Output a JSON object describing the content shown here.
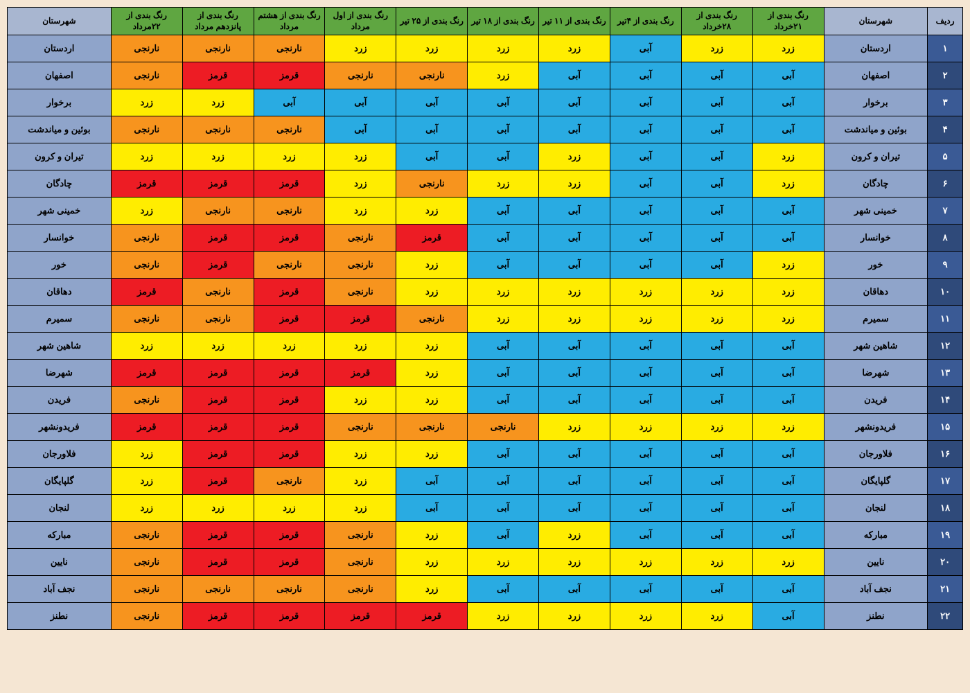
{
  "colors": {
    "header_city_bg": "#a8b6d0",
    "header_date_bg": "#5fa641",
    "header_fg": "#000000",
    "row_city_bg": "#8fa4ca",
    "row_num_odd_bg": "#3a5a95",
    "row_num_even_bg": "#2f4a7a",
    "row_num_fg": "#ffffff",
    "blue": "#29abe2",
    "yellow": "#ffed00",
    "orange": "#f7941e",
    "red": "#ed1c24",
    "cell_fg": "#000000"
  },
  "status_labels": {
    "blue": "آبی",
    "yellow": "زرد",
    "orange": "نارنجی",
    "red": "قرمز"
  },
  "headers": {
    "radif": "ردیف",
    "city": "شهرستان",
    "dates": [
      "رنگ بندی از ۲۱خرداد",
      "رنگ بندی از ۲۸خرداد",
      "رنگ بندی از ۴تیر",
      "رنگ بندی از ۱۱ تیر",
      "رنگ بندی از ۱۸ تیر",
      "رنگ بندی از ۲۵ تیر",
      "رنگ بندی از اول مرداد",
      "رنگ بندی از هشتم مرداد",
      "رنگ بندی از پانزدهم مرداد",
      "رنگ بندی از ۲۲مرداد"
    ]
  },
  "persian_digits": [
    "۰",
    "۱",
    "۲",
    "۳",
    "۴",
    "۵",
    "۶",
    "۷",
    "۸",
    "۹"
  ],
  "rows": [
    {
      "city": "اردستان",
      "v": [
        "yellow",
        "yellow",
        "blue",
        "yellow",
        "yellow",
        "yellow",
        "yellow",
        "orange",
        "orange",
        "orange"
      ]
    },
    {
      "city": "اصفهان",
      "v": [
        "blue",
        "blue",
        "blue",
        "blue",
        "yellow",
        "orange",
        "orange",
        "red",
        "red",
        "orange"
      ]
    },
    {
      "city": "برخوار",
      "v": [
        "blue",
        "blue",
        "blue",
        "blue",
        "blue",
        "blue",
        "blue",
        "blue",
        "yellow",
        "yellow"
      ]
    },
    {
      "city": "بوئین و میاندشت",
      "v": [
        "blue",
        "blue",
        "blue",
        "blue",
        "blue",
        "blue",
        "blue",
        "orange",
        "orange",
        "orange"
      ]
    },
    {
      "city": "تیران و کرون",
      "v": [
        "yellow",
        "blue",
        "blue",
        "yellow",
        "blue",
        "blue",
        "yellow",
        "yellow",
        "yellow",
        "yellow"
      ]
    },
    {
      "city": "چادگان",
      "v": [
        "yellow",
        "blue",
        "blue",
        "yellow",
        "yellow",
        "orange",
        "yellow",
        "red",
        "red",
        "red"
      ]
    },
    {
      "city": "خمینی شهر",
      "v": [
        "blue",
        "blue",
        "blue",
        "blue",
        "blue",
        "yellow",
        "yellow",
        "orange",
        "orange",
        "yellow"
      ]
    },
    {
      "city": "خوانسار",
      "v": [
        "blue",
        "blue",
        "blue",
        "blue",
        "blue",
        "red",
        "orange",
        "red",
        "red",
        "orange"
      ]
    },
    {
      "city": "خور",
      "v": [
        "yellow",
        "blue",
        "blue",
        "blue",
        "blue",
        "yellow",
        "orange",
        "orange",
        "red",
        "orange"
      ]
    },
    {
      "city": "دهاقان",
      "v": [
        "yellow",
        "yellow",
        "yellow",
        "yellow",
        "yellow",
        "yellow",
        "orange",
        "red",
        "orange",
        "red"
      ]
    },
    {
      "city": "سمیرم",
      "v": [
        "yellow",
        "yellow",
        "yellow",
        "yellow",
        "yellow",
        "orange",
        "red",
        "red",
        "orange",
        "orange"
      ]
    },
    {
      "city": "شاهین شهر",
      "v": [
        "blue",
        "blue",
        "blue",
        "blue",
        "blue",
        "yellow",
        "yellow",
        "yellow",
        "yellow",
        "yellow"
      ]
    },
    {
      "city": "شهرضا",
      "v": [
        "blue",
        "blue",
        "blue",
        "blue",
        "blue",
        "yellow",
        "red",
        "red",
        "red",
        "red"
      ]
    },
    {
      "city": "فریدن",
      "v": [
        "blue",
        "blue",
        "blue",
        "blue",
        "blue",
        "yellow",
        "yellow",
        "red",
        "red",
        "orange"
      ]
    },
    {
      "city": "فریدونشهر",
      "v": [
        "yellow",
        "yellow",
        "yellow",
        "yellow",
        "orange",
        "orange",
        "orange",
        "red",
        "red",
        "red"
      ]
    },
    {
      "city": "فلاورجان",
      "v": [
        "blue",
        "blue",
        "blue",
        "blue",
        "blue",
        "yellow",
        "yellow",
        "red",
        "red",
        "yellow"
      ]
    },
    {
      "city": "گلپایگان",
      "v": [
        "blue",
        "blue",
        "blue",
        "blue",
        "blue",
        "blue",
        "yellow",
        "orange",
        "red",
        "yellow"
      ]
    },
    {
      "city": "لنجان",
      "v": [
        "blue",
        "blue",
        "blue",
        "blue",
        "blue",
        "blue",
        "yellow",
        "yellow",
        "yellow",
        "yellow"
      ]
    },
    {
      "city": "مبارکه",
      "v": [
        "blue",
        "blue",
        "blue",
        "yellow",
        "blue",
        "yellow",
        "orange",
        "red",
        "red",
        "orange"
      ]
    },
    {
      "city": "نایین",
      "v": [
        "yellow",
        "yellow",
        "yellow",
        "yellow",
        "yellow",
        "yellow",
        "orange",
        "red",
        "red",
        "orange"
      ]
    },
    {
      "city": "نجف آباد",
      "v": [
        "blue",
        "blue",
        "blue",
        "blue",
        "blue",
        "yellow",
        "orange",
        "orange",
        "orange",
        "orange"
      ]
    },
    {
      "city": "نطنز",
      "v": [
        "blue",
        "yellow",
        "yellow",
        "yellow",
        "yellow",
        "red",
        "red",
        "red",
        "red",
        "orange"
      ]
    }
  ]
}
